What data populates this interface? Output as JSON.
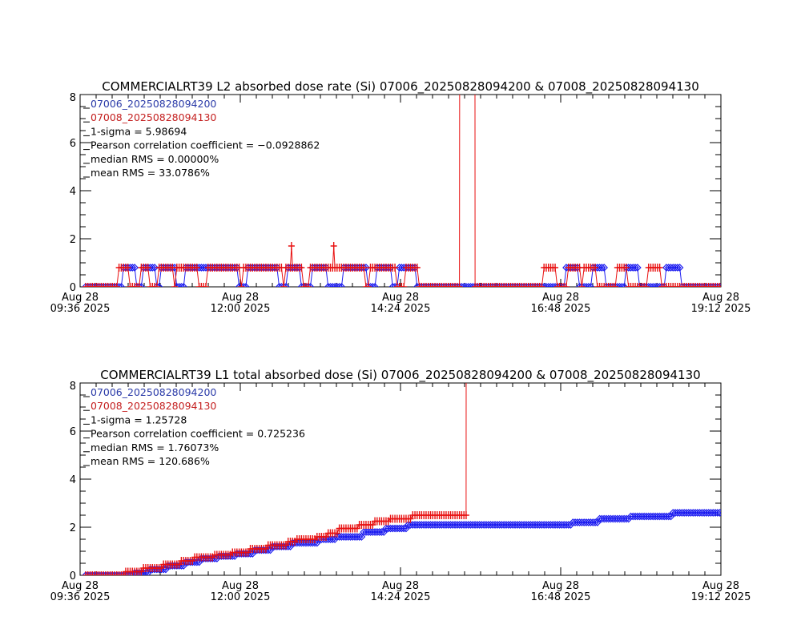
{
  "colors": {
    "series_a": "#1c1cf0",
    "series_b": "#e81010",
    "legend_a": "#2a3aa8",
    "legend_b": "#c42020",
    "axis": "#000000"
  },
  "chart_data": [
    {
      "type": "line",
      "title": "COMMERCIALRT39 L2 absorbed dose rate (Si) 07006_20250828094200 & 07008_20250828094130",
      "xlabel": "",
      "ylabel": "",
      "xlim": [
        "09:36",
        "19:12"
      ],
      "ylim": [
        0,
        8
      ],
      "y_ticks": [
        "0",
        "2",
        "4",
        "6",
        "8"
      ],
      "x_ticks": [
        {
          "line1": "Aug 28",
          "line2": "09:36 2025"
        },
        {
          "line1": "Aug 28",
          "line2": "12:00 2025"
        },
        {
          "line1": "Aug 28",
          "line2": "14:24 2025"
        },
        {
          "line1": "Aug 28",
          "line2": "16:48 2025"
        },
        {
          "line1": "Aug 28",
          "line2": "19:12 2025"
        }
      ],
      "legend": {
        "series_a": "07006_20250828094200",
        "series_b": "07008_20250828094130",
        "sigma": "1-sigma = 5.98694",
        "pearson": "Pearson correlation coefficient = −0.0928862",
        "median_rms": "median RMS = 0.00000%",
        "mean_rms": "mean RMS = 33.0786%"
      },
      "data_start": "09:41",
      "data_end": "19:12",
      "series": [
        {
          "name": "07006_20250828094200",
          "marker": "diamond",
          "color": "#1c1cf0",
          "base": 0,
          "level": 0.8,
          "on_intervals": [
            [
              "10:14",
              "10:25"
            ],
            [
              "10:33",
              "10:43"
            ],
            [
              "10:49",
              "11:02"
            ],
            [
              "11:11",
              "11:31"
            ],
            [
              "11:33",
              "11:58"
            ],
            [
              "12:07",
              "12:34"
            ],
            [
              "12:42",
              "12:53"
            ],
            [
              "13:05",
              "13:18"
            ],
            [
              "13:33",
              "13:54"
            ],
            [
              "14:02",
              "14:16"
            ],
            [
              "14:23",
              "14:38"
            ],
            [
              "16:52",
              "17:04"
            ],
            [
              "17:16",
              "17:28"
            ],
            [
              "17:47",
              "17:57"
            ],
            [
              "18:23",
              "18:36"
            ]
          ],
          "spikes": [],
          "off_scale_intervals": []
        },
        {
          "name": "07008_20250828094130",
          "marker": "plus",
          "color": "#e81010",
          "base": 0,
          "level": 0.8,
          "on_intervals": [
            [
              "10:11",
              "10:20"
            ],
            [
              "10:30",
              "10:38"
            ],
            [
              "10:46",
              "10:59"
            ],
            [
              "11:02",
              "11:22"
            ],
            [
              "11:31",
              "12:00"
            ],
            [
              "12:03",
              "12:37"
            ],
            [
              "12:40",
              "12:55"
            ],
            [
              "13:02",
              "13:33"
            ],
            [
              "13:35",
              "13:52"
            ],
            [
              "13:57",
              "14:07"
            ],
            [
              "14:09",
              "14:20"
            ],
            [
              "14:29",
              "14:40"
            ],
            [
              "16:32",
              "16:43"
            ],
            [
              "16:54",
              "17:05"
            ],
            [
              "17:09",
              "17:19"
            ],
            [
              "17:38",
              "17:48"
            ],
            [
              "18:06",
              "18:17"
            ]
          ],
          "spikes": [
            {
              "time": "12:46",
              "value": 1.7
            },
            {
              "time": "13:24",
              "value": 1.7
            }
          ],
          "off_scale_intervals": [
            [
              "15:19",
              "15:30"
            ]
          ]
        }
      ]
    },
    {
      "type": "line",
      "title": "COMMERCIALRT39 L1 total absorbed dose (Si) 07006_20250828094200 & 07008_20250828094130",
      "xlabel": "",
      "ylabel": "",
      "xlim": [
        "09:36",
        "19:12"
      ],
      "ylim": [
        0,
        8
      ],
      "y_ticks": [
        "0",
        "2",
        "4",
        "6",
        "8"
      ],
      "x_ticks": [
        {
          "line1": "Aug 28",
          "line2": "09:36 2025"
        },
        {
          "line1": "Aug 28",
          "line2": "12:00 2025"
        },
        {
          "line1": "Aug 28",
          "line2": "14:24 2025"
        },
        {
          "line1": "Aug 28",
          "line2": "16:48 2025"
        },
        {
          "line1": "Aug 28",
          "line2": "19:12 2025"
        }
      ],
      "legend": {
        "series_a": "07006_20250828094200",
        "series_b": "07008_20250828094130",
        "sigma": "1-sigma = 1.25728",
        "pearson": "Pearson correlation coefficient = 0.725236",
        "median_rms": "median RMS = 1.76073%",
        "mean_rms": "mean RMS = 120.686%"
      },
      "data_start": "09:41",
      "series": [
        {
          "name": "07006_20250828094200",
          "marker": "diamond",
          "color": "#1c1cf0",
          "end": "19:12",
          "end_off_scale": false,
          "steps": [
            [
              "09:41",
              0
            ],
            [
              "10:25",
              0.1
            ],
            [
              "10:38",
              0.25
            ],
            [
              "10:55",
              0.4
            ],
            [
              "11:10",
              0.55
            ],
            [
              "11:24",
              0.7
            ],
            [
              "11:40",
              0.8
            ],
            [
              "11:56",
              0.9
            ],
            [
              "12:13",
              1.05
            ],
            [
              "12:29",
              1.2
            ],
            [
              "12:47",
              1.35
            ],
            [
              "13:10",
              1.5
            ],
            [
              "13:27",
              1.6
            ],
            [
              "13:50",
              1.8
            ],
            [
              "14:10",
              1.95
            ],
            [
              "14:30",
              2.1
            ],
            [
              "16:58",
              2.2
            ],
            [
              "17:23",
              2.35
            ],
            [
              "17:50",
              2.45
            ],
            [
              "18:29",
              2.6
            ]
          ]
        },
        {
          "name": "07008_20250828094130",
          "marker": "plus",
          "color": "#e81010",
          "end": "15:24",
          "end_off_scale": true,
          "steps": [
            [
              "09:41",
              0
            ],
            [
              "10:17",
              0.15
            ],
            [
              "10:33",
              0.3
            ],
            [
              "10:51",
              0.45
            ],
            [
              "11:06",
              0.6
            ],
            [
              "11:18",
              0.75
            ],
            [
              "11:36",
              0.85
            ],
            [
              "11:52",
              0.95
            ],
            [
              "12:09",
              1.1
            ],
            [
              "12:25",
              1.25
            ],
            [
              "12:43",
              1.4
            ],
            [
              "12:51",
              1.5
            ],
            [
              "13:08",
              1.6
            ],
            [
              "13:19",
              1.75
            ],
            [
              "13:28",
              1.95
            ],
            [
              "13:46",
              2.1
            ],
            [
              "14:01",
              2.25
            ],
            [
              "14:14",
              2.35
            ],
            [
              "14:34",
              2.5
            ]
          ]
        }
      ]
    }
  ]
}
